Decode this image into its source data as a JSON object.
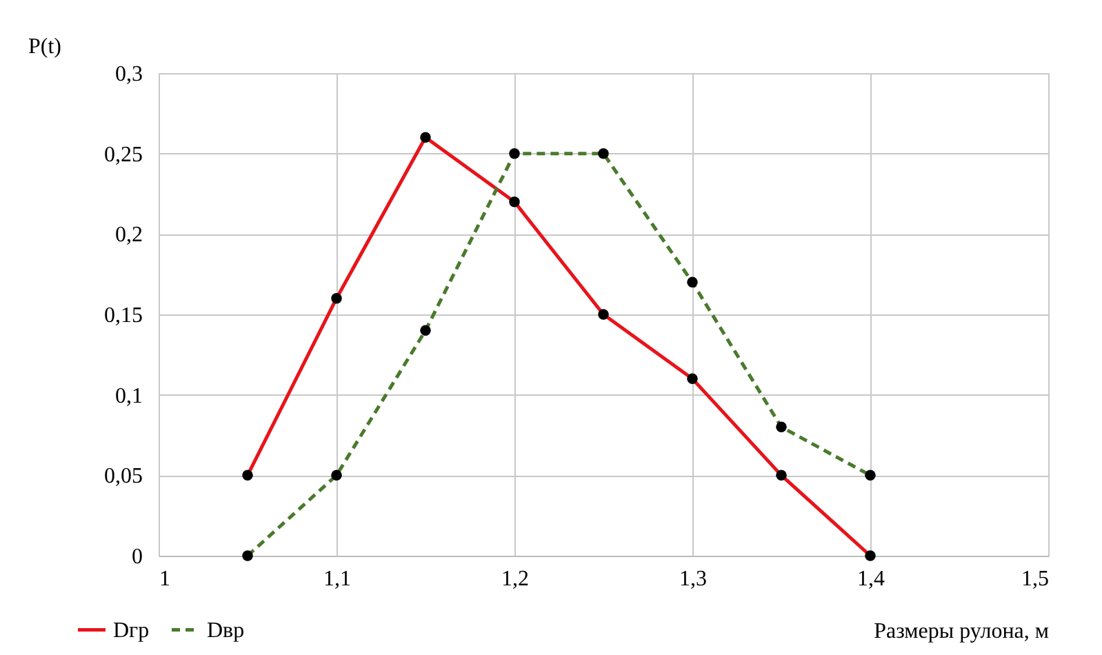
{
  "chart_data": {
    "type": "line",
    "xlabel": "Размеры рулона, м",
    "ylabel": "P(t)",
    "x": [
      1.05,
      1.1,
      1.15,
      1.2,
      1.25,
      1.3,
      1.35,
      1.4
    ],
    "series": [
      {
        "name": "Dгр",
        "color": "#e8141b",
        "line_style": "solid",
        "values": [
          0.05,
          0.16,
          0.26,
          0.22,
          0.15,
          0.11,
          0.05,
          0
        ]
      },
      {
        "name": "Dвр",
        "color": "#4a7a2c",
        "line_style": "dashed",
        "values": [
          0,
          0.05,
          0.14,
          0.25,
          0.25,
          0.17,
          0.08,
          0.05
        ]
      }
    ],
    "xlim": [
      1,
      1.5
    ],
    "xticks": [
      1,
      {
        "value": 1.1,
        "label": "1,1"
      },
      {
        "value": 1.2,
        "label": "1,2"
      },
      {
        "value": 1.3,
        "label": "1,3"
      },
      {
        "value": 1.4,
        "label": "1,4"
      },
      {
        "value": 1.5,
        "label": "1,5"
      }
    ],
    "ylim": [
      0,
      0.3
    ],
    "yticks": [
      0,
      {
        "value": 0.05,
        "label": "0,05"
      },
      {
        "value": 0.1,
        "label": "0,1"
      },
      {
        "value": 0.15,
        "label": "0,15"
      },
      {
        "value": 0.2,
        "label": "0,2"
      },
      {
        "value": 0.25,
        "label": "0,25"
      },
      {
        "value": 0.3,
        "label": "0,3"
      }
    ],
    "grid": true,
    "legend": "bottom left",
    "marker": "circle"
  }
}
